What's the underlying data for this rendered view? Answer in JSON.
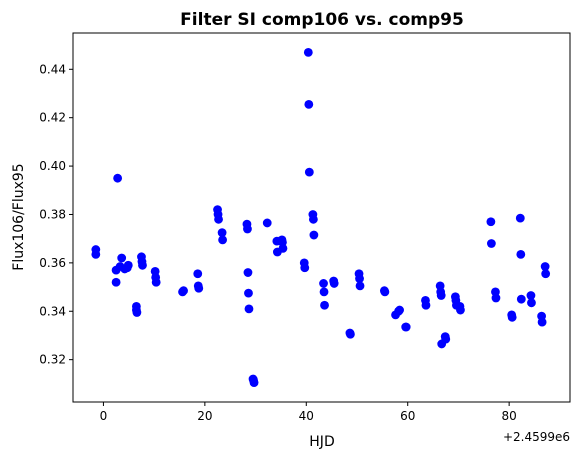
{
  "chart_data": {
    "type": "scatter",
    "title": "Filter SI comp106 vs. comp95",
    "xlabel": "HJD",
    "ylabel": "Flux106/Flux95",
    "x_offset_label": "+2.4599e6",
    "xlim": [
      -6,
      92
    ],
    "ylim": [
      0.3025,
      0.455
    ],
    "x_ticks": [
      0,
      20,
      40,
      60,
      80
    ],
    "y_ticks": [
      0.32,
      0.34,
      0.36,
      0.38,
      0.4,
      0.42,
      0.44
    ],
    "x_tick_labels": [
      "0",
      "20",
      "40",
      "60",
      "80"
    ],
    "y_tick_labels": [
      "0.32",
      "0.34",
      "0.36",
      "0.38",
      "0.40",
      "0.42",
      "0.44"
    ],
    "marker_color": "#0000ff",
    "grid": false,
    "x": [
      -1.5,
      -1.5,
      2.5,
      2.5,
      2.8,
      3.3,
      3.6,
      4.2,
      4.7,
      4.9,
      6.5,
      6.5,
      6.6,
      7.5,
      7.6,
      7.7,
      10.2,
      10.3,
      10.4,
      15.6,
      15.8,
      18.6,
      18.7,
      18.8,
      22.5,
      22.6,
      22.7,
      23.4,
      23.5,
      28.3,
      28.4,
      28.5,
      28.6,
      28.7,
      29.5,
      29.6,
      29.7,
      32.3,
      34.2,
      34.3,
      35.2,
      35.3,
      35.4,
      39.6,
      39.7,
      40.4,
      40.5,
      40.6,
      41.3,
      41.4,
      41.5,
      43.4,
      43.5,
      43.6,
      45.4,
      45.5,
      48.6,
      48.7,
      50.4,
      50.5,
      50.6,
      55.4,
      55.5,
      57.6,
      58.2,
      58.4,
      59.6,
      59.7,
      63.5,
      63.6,
      66.4,
      66.5,
      66.6,
      66.7,
      67.4,
      67.5,
      69.4,
      69.5,
      69.6,
      70.3,
      70.4,
      76.4,
      76.5,
      77.3,
      77.4,
      80.5,
      80.6,
      82.2,
      82.3,
      82.4,
      84.3,
      84.4,
      86.4,
      86.5,
      87.1,
      87.2
    ],
    "y": [
      0.3655,
      0.3635,
      0.357,
      0.352,
      0.395,
      0.3585,
      0.362,
      0.3575,
      0.358,
      0.359,
      0.342,
      0.3405,
      0.3395,
      0.3625,
      0.3605,
      0.359,
      0.3565,
      0.354,
      0.352,
      0.348,
      0.3485,
      0.3555,
      0.3505,
      0.3495,
      0.382,
      0.38,
      0.378,
      0.3725,
      0.3695,
      0.376,
      0.374,
      0.356,
      0.3475,
      0.341,
      0.312,
      0.3115,
      0.3105,
      0.3765,
      0.369,
      0.3645,
      0.3695,
      0.3685,
      0.366,
      0.36,
      0.358,
      0.447,
      0.4255,
      0.3975,
      0.38,
      0.378,
      0.3715,
      0.3515,
      0.348,
      0.3425,
      0.3525,
      0.3515,
      0.331,
      0.3305,
      0.3555,
      0.3535,
      0.3505,
      0.3485,
      0.348,
      0.3385,
      0.34,
      0.3405,
      0.3335,
      0.3335,
      0.3445,
      0.3425,
      0.3505,
      0.348,
      0.3465,
      0.3265,
      0.3295,
      0.3285,
      0.346,
      0.3445,
      0.3425,
      0.342,
      0.3405,
      0.377,
      0.368,
      0.348,
      0.3455,
      0.3385,
      0.3375,
      0.3785,
      0.3635,
      0.345,
      0.3465,
      0.3435,
      0.338,
      0.3355,
      0.3585,
      0.3555
    ]
  }
}
